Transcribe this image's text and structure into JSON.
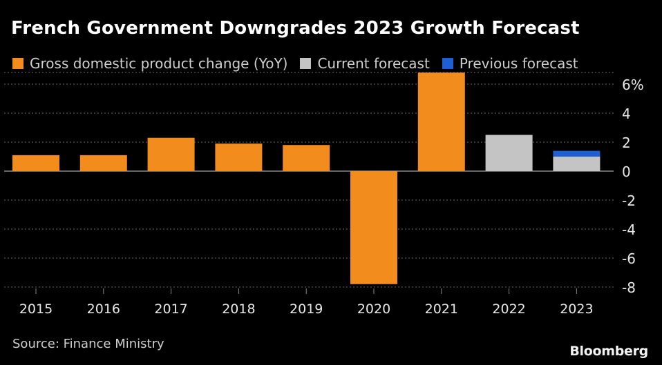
{
  "chart_data": {
    "type": "bar",
    "title": "French Government Downgrades 2023 Growth Forecast",
    "categories": [
      "2015",
      "2016",
      "2017",
      "2018",
      "2019",
      "2020",
      "2021",
      "2022",
      "2023"
    ],
    "series": [
      {
        "name": "Gross domestic product change (YoY)",
        "color": "#f28c1c",
        "values": [
          1.1,
          1.1,
          2.3,
          1.9,
          1.8,
          -7.8,
          6.8,
          null,
          null
        ]
      },
      {
        "name": "Current forecast",
        "color": "#c4c4c4",
        "values": [
          null,
          null,
          null,
          null,
          null,
          null,
          null,
          2.5,
          1.0
        ]
      },
      {
        "name": "Previous forecast",
        "color": "#1f5fd6",
        "values": [
          null,
          null,
          null,
          null,
          null,
          null,
          null,
          null,
          1.4
        ]
      }
    ],
    "y_ticks": [
      "6%",
      "4",
      "2",
      "0",
      "-2",
      "-4",
      "-6",
      "-8"
    ],
    "ylim": [
      -8,
      6.8
    ],
    "grid": true,
    "legend_position": "top-left"
  },
  "source": "Source: Finance Ministry",
  "brand": "Bloomberg"
}
